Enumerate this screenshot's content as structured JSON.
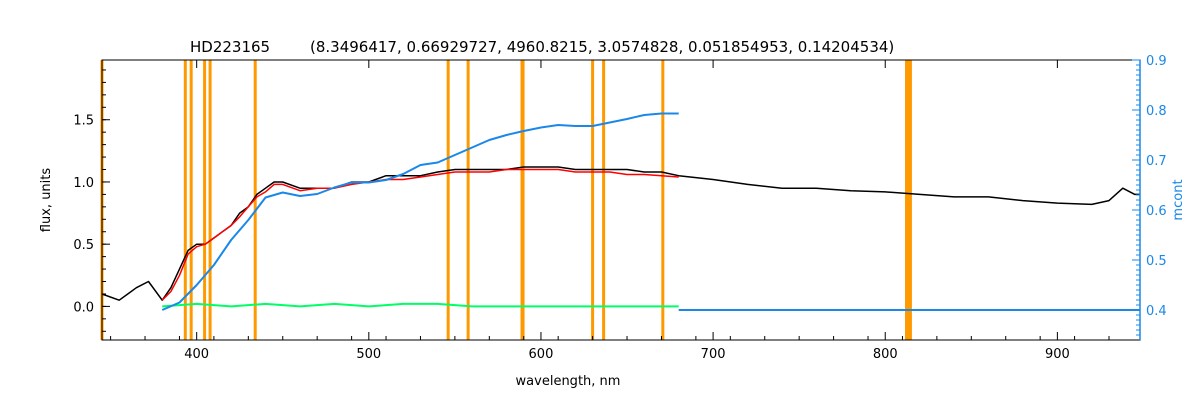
{
  "chart_data": {
    "type": "line",
    "title": "HD223165",
    "subtitle": "(8.3496417, 0.66929727, 4960.8215, 3.0574828, 0.051854953, 0.14204534)",
    "xlabel": "wavelength, nm",
    "ylabel": "flux, units",
    "ylabel_right": "mcont",
    "xlim": [
      345,
      948
    ],
    "ylim": [
      -0.27,
      1.98
    ],
    "ylim_right": [
      0.34,
      0.9
    ],
    "x_ticks": [
      400,
      500,
      600,
      700,
      800,
      900
    ],
    "x_tick_labels": [
      "400",
      "500",
      "600",
      "700",
      "800",
      "900"
    ],
    "y_ticks": [
      0.0,
      0.5,
      1.0,
      1.5
    ],
    "y_tick_labels": [
      "0.0",
      "0.5",
      "1.0",
      "1.5"
    ],
    "y_right_ticks": [
      0.4,
      0.5,
      0.6,
      0.7,
      0.8,
      0.9
    ],
    "y_right_tick_labels": [
      "0.4",
      "0.5",
      "0.6",
      "0.7",
      "0.8",
      "0.9"
    ],
    "colors": {
      "observed": "#000000",
      "model": "#ff0000",
      "residual": "#00ff66",
      "continuum": "#1a88e8",
      "masks": "#ff9900",
      "right_axis": "#1a88e8"
    },
    "mask_lines_nm": [
      345,
      393.4,
      396.8,
      404.6,
      407.8,
      434.0,
      546.1,
      557.7,
      589.0,
      589.6,
      630.0,
      636.4,
      670.8
    ],
    "mask_band_nm": [
      811.5,
      815.5
    ],
    "series": [
      {
        "name": "",
        "role": "observed",
        "x": [
          345,
          355,
          365,
          372,
          380,
          385,
          390,
          395,
          400,
          405,
          410,
          415,
          420,
          425,
          430,
          435,
          440,
          445,
          450,
          460,
          470,
          480,
          490,
          500,
          510,
          520,
          530,
          540,
          550,
          560,
          570,
          580,
          590,
          600,
          610,
          620,
          630,
          640,
          650,
          660,
          670,
          680,
          700,
          720,
          740,
          760,
          780,
          800,
          820,
          840,
          860,
          880,
          900,
          920,
          930,
          938,
          945,
          948
        ],
        "y": [
          0.1,
          0.05,
          0.15,
          0.2,
          0.05,
          0.15,
          0.3,
          0.45,
          0.5,
          0.5,
          0.55,
          0.6,
          0.65,
          0.75,
          0.8,
          0.9,
          0.95,
          1.0,
          1.0,
          0.95,
          0.95,
          0.95,
          1.0,
          1.0,
          1.05,
          1.05,
          1.05,
          1.08,
          1.1,
          1.1,
          1.1,
          1.1,
          1.12,
          1.12,
          1.12,
          1.1,
          1.1,
          1.1,
          1.1,
          1.08,
          1.08,
          1.05,
          1.02,
          0.98,
          0.95,
          0.95,
          0.93,
          0.92,
          0.9,
          0.88,
          0.88,
          0.85,
          0.83,
          0.82,
          0.85,
          0.95,
          0.9,
          0.9
        ]
      },
      {
        "name": "",
        "role": "model",
        "x": [
          380,
          385,
          390,
          395,
          400,
          405,
          410,
          415,
          420,
          425,
          430,
          435,
          440,
          445,
          450,
          460,
          470,
          480,
          490,
          500,
          510,
          520,
          530,
          540,
          550,
          560,
          570,
          580,
          590,
          600,
          610,
          620,
          630,
          640,
          650,
          660,
          670,
          680
        ],
        "y": [
          0.05,
          0.12,
          0.25,
          0.42,
          0.48,
          0.5,
          0.55,
          0.6,
          0.65,
          0.72,
          0.8,
          0.88,
          0.92,
          0.98,
          0.98,
          0.93,
          0.95,
          0.95,
          0.98,
          1.0,
          1.02,
          1.02,
          1.04,
          1.06,
          1.08,
          1.08,
          1.08,
          1.1,
          1.1,
          1.1,
          1.1,
          1.08,
          1.08,
          1.08,
          1.06,
          1.06,
          1.05,
          1.04
        ]
      },
      {
        "name": "",
        "role": "residual",
        "x": [
          380,
          400,
          420,
          440,
          460,
          480,
          500,
          520,
          540,
          560,
          580,
          600,
          620,
          640,
          660,
          680
        ],
        "y": [
          0.0,
          0.02,
          0.0,
          0.02,
          0.0,
          0.02,
          0.0,
          0.02,
          0.02,
          0.0,
          0.0,
          0.0,
          0.0,
          0.0,
          0.0,
          0.0
        ]
      },
      {
        "name": "",
        "role": "continuum",
        "axis": "right",
        "x": [
          380,
          390,
          400,
          410,
          420,
          430,
          440,
          450,
          460,
          470,
          480,
          490,
          500,
          510,
          520,
          530,
          540,
          550,
          560,
          570,
          580,
          590,
          600,
          610,
          620,
          630,
          640,
          650,
          660,
          670,
          680
        ],
        "y": [
          0.4,
          0.415,
          0.45,
          0.49,
          0.54,
          0.58,
          0.625,
          0.635,
          0.628,
          0.632,
          0.645,
          0.655,
          0.655,
          0.66,
          0.672,
          0.69,
          0.695,
          0.71,
          0.725,
          0.74,
          0.75,
          0.758,
          0.765,
          0.77,
          0.768,
          0.768,
          0.775,
          0.782,
          0.79,
          0.793,
          0.793
        ]
      },
      {
        "name": "",
        "role": "continuum-baseline",
        "axis": "right",
        "x": [
          680,
          948
        ],
        "y": [
          0.4,
          0.4
        ]
      }
    ]
  }
}
